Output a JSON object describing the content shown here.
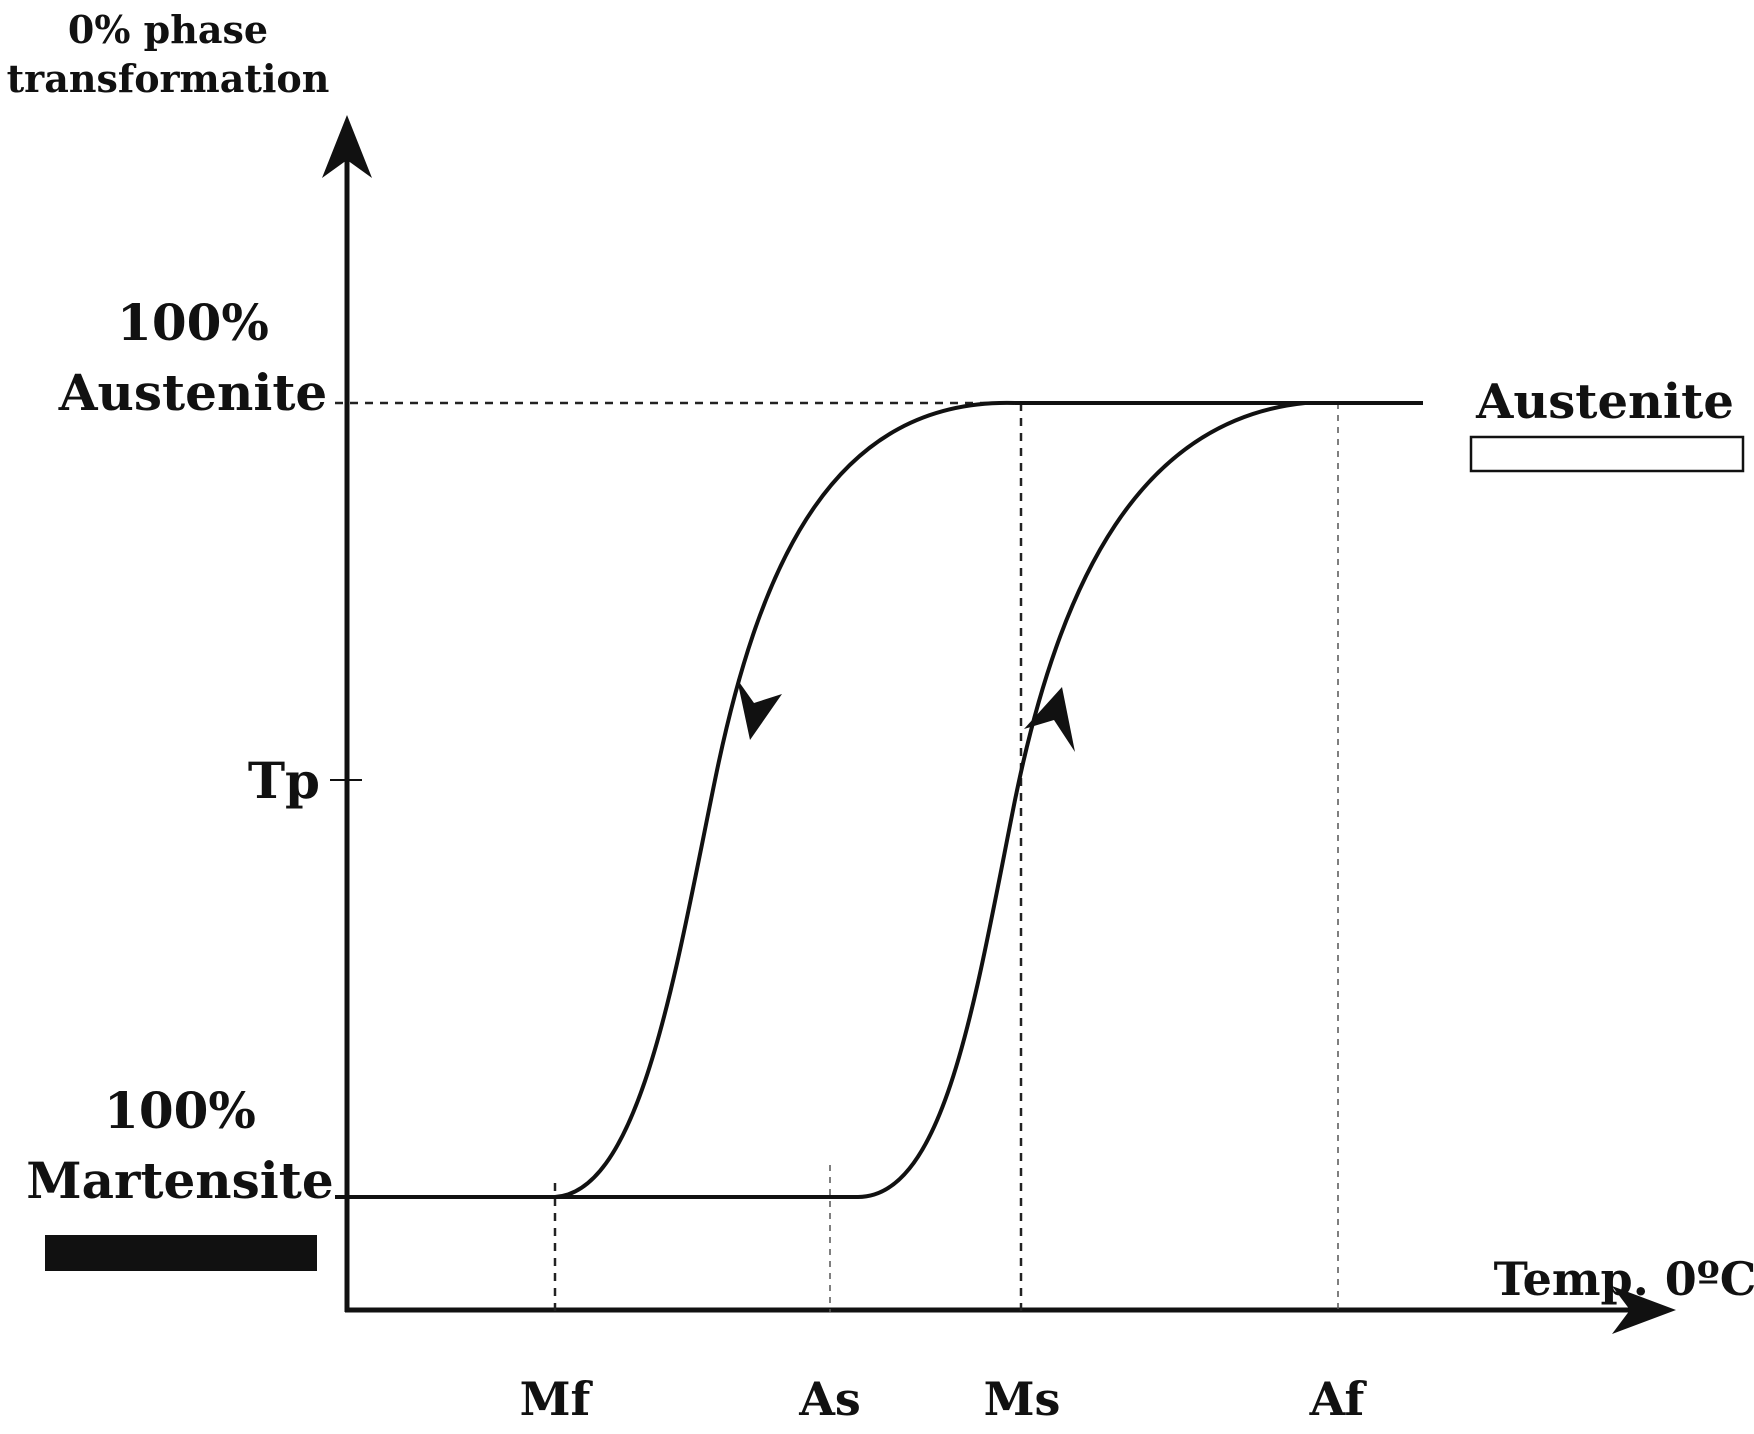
{
  "y_axis": {
    "title_line1": "0% phase",
    "title_line2": "transformation",
    "top_label_line1": "100%",
    "top_label_line2": "Austenite",
    "mid_label": "Tp",
    "bottom_label_line1": "100%",
    "bottom_label_line2": "Martensite"
  },
  "x_axis": {
    "title": "Temp. 0ºC",
    "ticks": [
      "Mf",
      "As",
      "Ms",
      "Af"
    ]
  },
  "legend": {
    "austenite_label": "Austenite",
    "austenite_swatch_color": "#ffffff",
    "martensite_swatch_color": "#111111"
  },
  "colors": {
    "ink": "#111111",
    "background": "#ffffff"
  }
}
